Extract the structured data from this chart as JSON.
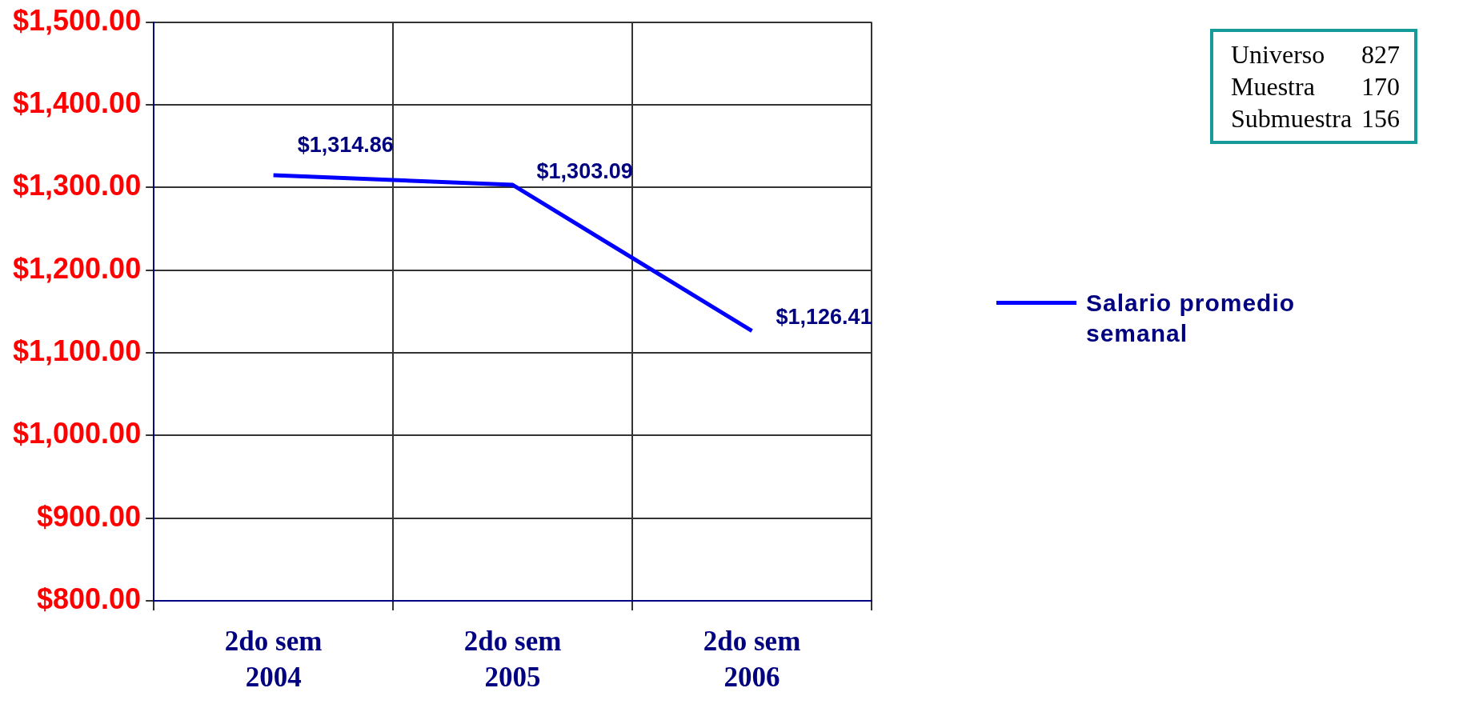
{
  "chart_data": {
    "type": "line",
    "categories": [
      "2do sem 2004",
      "2do sem 2005",
      "2do sem 2006"
    ],
    "series": [
      {
        "name": "Salario promedio semanal",
        "color": "#0000ff",
        "values": [
          1314.86,
          1303.09,
          1126.41
        ],
        "value_labels": [
          "$1,314.86",
          "$1,303.09",
          "$1,126.41"
        ]
      }
    ],
    "ylim": [
      800,
      1500
    ],
    "yticks": [
      {
        "value": 800,
        "label": "$800.00"
      },
      {
        "value": 900,
        "label": "$900.00"
      },
      {
        "value": 1000,
        "label": "$1,000.00"
      },
      {
        "value": 1100,
        "label": "$1,100.00"
      },
      {
        "value": 1200,
        "label": "$1,200.00"
      },
      {
        "value": 1300,
        "label": "$1,300.00"
      },
      {
        "value": 1400,
        "label": "$1,400.00"
      },
      {
        "value": 1500,
        "label": "$1,500.00"
      }
    ],
    "grid": true,
    "legend": "right",
    "marker": "none",
    "line_style": "solid",
    "annotations": [
      "Universo 827",
      "Muestra 170",
      "Submuestra 156"
    ]
  }
}
